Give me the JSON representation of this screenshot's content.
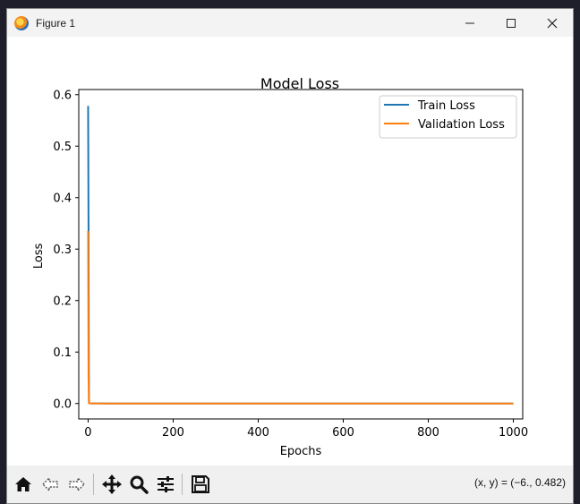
{
  "window": {
    "title": "Figure 1",
    "controls": [
      "minimize",
      "maximize",
      "close"
    ]
  },
  "toolbar": {
    "buttons": [
      "home",
      "back",
      "forward",
      "pan",
      "zoom",
      "configure-subplots",
      "save"
    ],
    "coords_text": "(x, y) = (−6., 0.482)"
  },
  "chart_data": {
    "type": "line",
    "title": "Model Loss",
    "xlabel": "Epochs",
    "ylabel": "Loss",
    "xlim": [
      -22,
      1022
    ],
    "ylim": [
      -0.03,
      0.61
    ],
    "xticks": [
      0,
      200,
      400,
      600,
      800,
      1000
    ],
    "yticks": [
      0.0,
      0.1,
      0.2,
      0.3,
      0.4,
      0.5,
      0.6
    ],
    "xtick_labels": [
      "0",
      "200",
      "400",
      "600",
      "800",
      "1000"
    ],
    "ytick_labels": [
      "0.0",
      "0.1",
      "0.2",
      "0.3",
      "0.4",
      "0.5",
      "0.6"
    ],
    "grid": false,
    "legend_position": "upper right",
    "series": [
      {
        "name": "Train Loss",
        "color": "#1f77b4",
        "x": [
          0,
          1,
          2,
          3,
          5,
          10,
          50,
          100,
          500,
          1000
        ],
        "y": [
          0.578,
          0.33,
          0.001,
          0.0005,
          0.0003,
          0.0002,
          0.0001,
          0.0001,
          0.0001,
          0.0001
        ]
      },
      {
        "name": "Validation Loss",
        "color": "#ff7f0e",
        "x": [
          0,
          1,
          2,
          3,
          5,
          10,
          50,
          100,
          500,
          1000
        ],
        "y": [
          0.335,
          0.05,
          0.001,
          0.0005,
          0.0003,
          0.0002,
          0.0001,
          0.0001,
          0.0001,
          0.0001
        ]
      }
    ]
  }
}
